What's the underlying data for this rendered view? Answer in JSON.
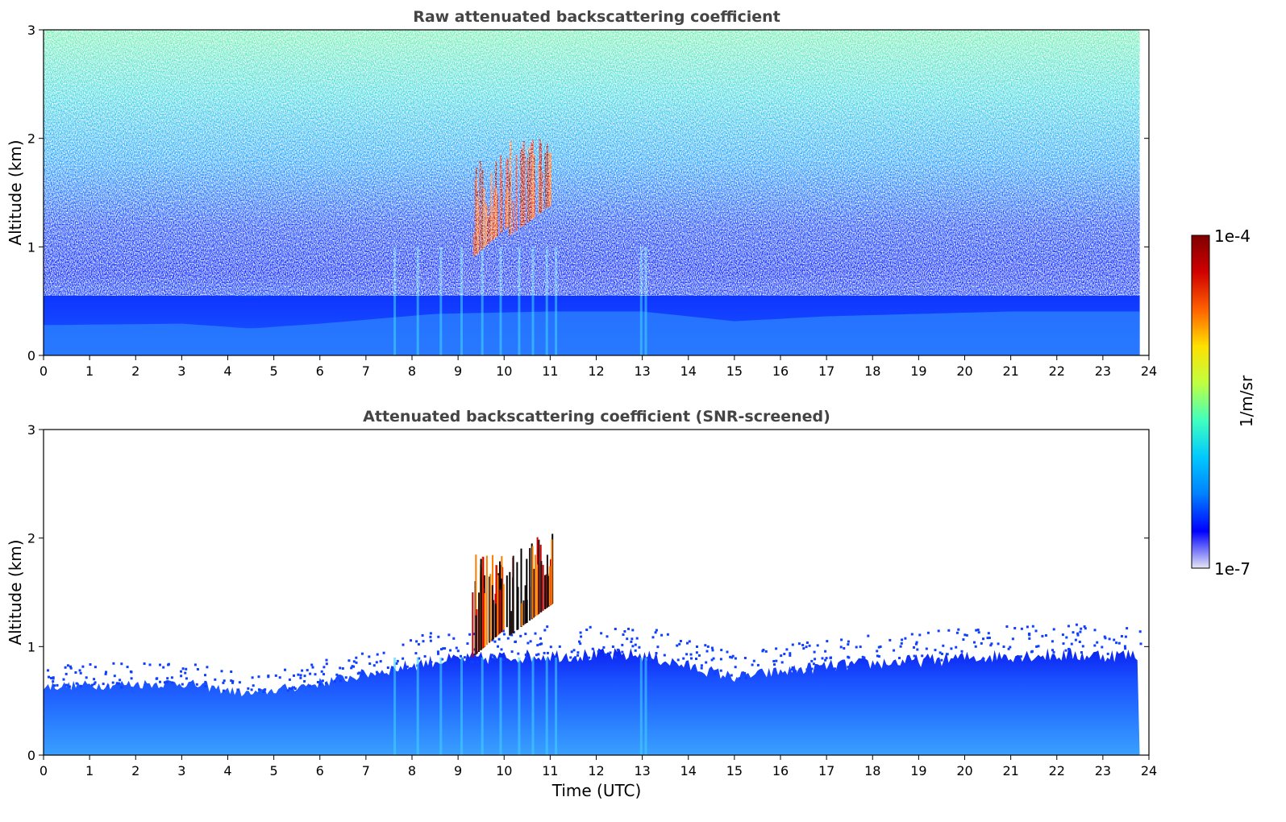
{
  "chart_data": [
    {
      "type": "heatmap",
      "title": "Raw attenuated backscattering coefficient",
      "xlabel": "",
      "ylabel": "Altitude (km)",
      "xlim": [
        0,
        24
      ],
      "ylim": [
        0,
        3
      ],
      "xticks": [
        "0",
        "1",
        "2",
        "3",
        "4",
        "5",
        "6",
        "7",
        "8",
        "9",
        "10",
        "11",
        "12",
        "13",
        "14",
        "15",
        "16",
        "17",
        "18",
        "19",
        "20",
        "21",
        "22",
        "23",
        "24"
      ],
      "yticks": [
        "0",
        "1",
        "2",
        "3"
      ],
      "data_end_time": 23.8,
      "boundary_layer_top_km": [
        {
          "time": 0,
          "height": 0.62
        },
        {
          "time": 3,
          "height": 0.65
        },
        {
          "time": 4.5,
          "height": 0.55
        },
        {
          "time": 6,
          "height": 0.65
        },
        {
          "time": 8.5,
          "height": 0.85
        },
        {
          "time": 11,
          "height": 0.9
        },
        {
          "time": 13,
          "height": 0.9
        },
        {
          "time": 15,
          "height": 0.7
        },
        {
          "time": 17,
          "height": 0.8
        },
        {
          "time": 19,
          "height": 0.85
        },
        {
          "time": 21,
          "height": 0.9
        },
        {
          "time": 23.8,
          "height": 0.9
        }
      ],
      "cloud_segments": [
        {
          "time_start": 9.3,
          "time_end": 10.1,
          "base_km": 0.9,
          "top_km": 1.85
        },
        {
          "time_start": 10.1,
          "time_end": 11.05,
          "base_km": 1.1,
          "top_km": 2.05
        }
      ],
      "screened": false
    },
    {
      "type": "heatmap",
      "title": "Attenuated backscattering coefficient (SNR-screened)",
      "xlabel": "Time (UTC)",
      "ylabel": "Altitude (km)",
      "xlim": [
        0,
        24
      ],
      "ylim": [
        0,
        3
      ],
      "xticks": [
        "0",
        "1",
        "2",
        "3",
        "4",
        "5",
        "6",
        "7",
        "8",
        "9",
        "10",
        "11",
        "12",
        "13",
        "14",
        "15",
        "16",
        "17",
        "18",
        "19",
        "20",
        "21",
        "22",
        "23",
        "24"
      ],
      "yticks": [
        "0",
        "1",
        "2",
        "3"
      ],
      "data_end_time": 23.8,
      "screened": true
    }
  ],
  "colorbar": {
    "label": "1/m/sr",
    "max_label": "1e-4",
    "min_label": "1e-7",
    "colormap": "jet",
    "colors": [
      "#e6e6f5",
      "#0000ff",
      "#0080ff",
      "#00c8ff",
      "#40ffc0",
      "#c0ff40",
      "#ffe000",
      "#ff6000",
      "#d00000",
      "#800000"
    ]
  }
}
